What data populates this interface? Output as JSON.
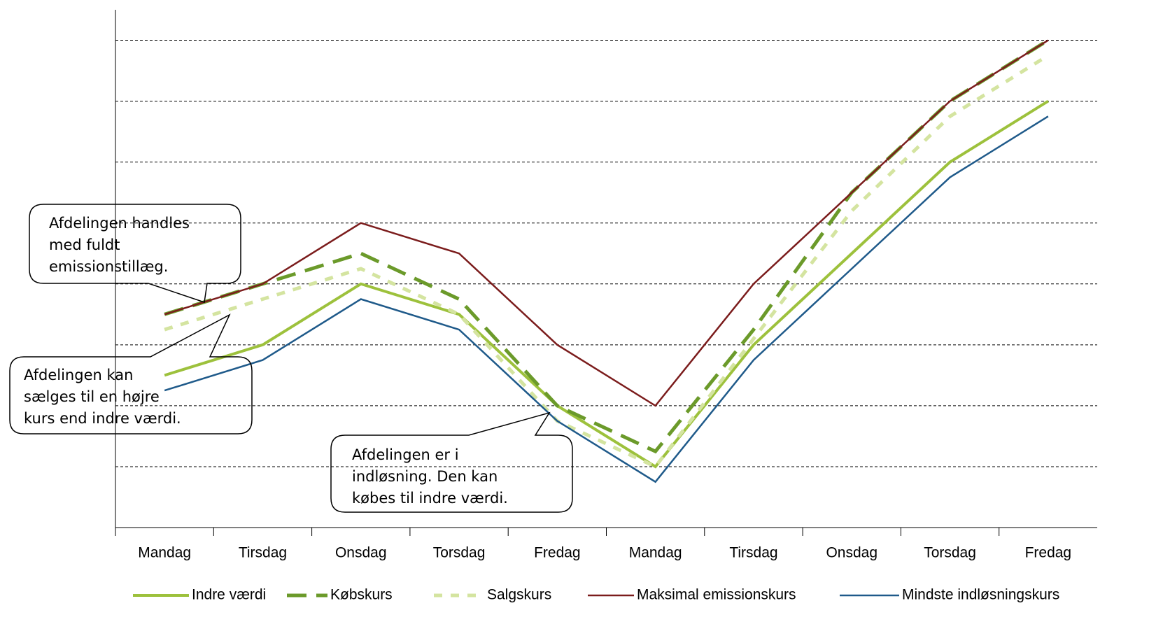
{
  "chart_data": {
    "type": "line",
    "categories": [
      "Mandag",
      "Tirsdag",
      "Onsdag",
      "Torsdag",
      "Fredag",
      "Mandag",
      "Tirsdag",
      "Onsdag",
      "Torsdag",
      "Fredag"
    ],
    "series": [
      {
        "name": "Indre værdi",
        "color": "#9dc13c",
        "linestyle": "solid",
        "values": [
          2.5,
          3,
          4,
          3.5,
          2,
          1,
          3,
          4.5,
          6,
          7
        ]
      },
      {
        "name": "Købskurs",
        "color": "#6b9a2a",
        "linestyle": "dashed",
        "values": [
          3.5,
          4,
          4.5,
          3.75,
          2,
          1.25,
          3.25,
          5.5,
          7,
          8
        ]
      },
      {
        "name": "Salgskurs",
        "color": "#d4e4a0",
        "linestyle": "dotted",
        "values": [
          3.25,
          3.75,
          4.25,
          3.5,
          1.75,
          1,
          3.1,
          5.2,
          6.75,
          7.75
        ]
      },
      {
        "name": "Maksimal emissionskurs",
        "color": "#7b1c1c",
        "linestyle": "solid",
        "values": [
          3.5,
          4,
          5,
          4.5,
          3,
          2,
          4,
          5.5,
          7,
          8
        ]
      },
      {
        "name": "Mindste indløsningskurs",
        "color": "#1f5a8a",
        "linestyle": "solid",
        "values": [
          2.25,
          2.75,
          3.75,
          3.25,
          1.75,
          0.75,
          2.75,
          4.25,
          5.75,
          6.75
        ]
      }
    ],
    "ylim": [
      0,
      8.5
    ],
    "yticks": [
      1,
      2,
      3,
      4,
      5,
      6,
      7,
      8
    ],
    "grid": true,
    "legend": "bottom",
    "annotations": [
      {
        "lines": [
          "Afdelingen handles",
          "med fuldt",
          "emissionstillæg."
        ]
      },
      {
        "lines": [
          "Afdelingen kan",
          "sælges til en højre",
          "kurs end indre værdi."
        ]
      },
      {
        "lines": [
          "Afdelingen er i",
          "indløsning. Den kan",
          "købes til indre værdi."
        ]
      }
    ]
  }
}
